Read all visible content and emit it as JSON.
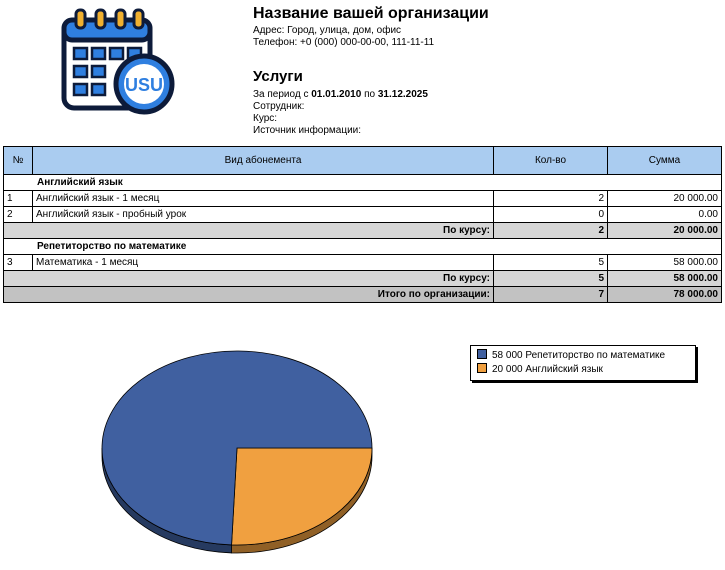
{
  "header": {
    "org_name": "Название вашей организации",
    "address": "Адрес: Город, улица, дом, офис",
    "phone": "Телефон: +0 (000) 000-00-00, 111-11-11",
    "logo_text": "USU"
  },
  "report": {
    "title": "Услуги",
    "period_prefix": "За период с",
    "period_from": "01.01.2010",
    "period_mid": "по",
    "period_to": "31.12.2025",
    "employee_label": "Сотрудник:",
    "course_label": "Курс:",
    "source_label": "Источник информации:"
  },
  "table": {
    "columns": [
      "№",
      "Вид абонемента",
      "Кол-во",
      "Сумма"
    ],
    "groups": [
      {
        "name": "Английский язык",
        "rows": [
          {
            "num": "1",
            "name": "Английский язык - 1 месяц",
            "qty": "2",
            "sum": "20 000.00"
          },
          {
            "num": "2",
            "name": "Английский язык - пробный урок",
            "qty": "0",
            "sum": "0.00"
          }
        ],
        "subtotal_label": "По курсу:",
        "subtotal_qty": "2",
        "subtotal_sum": "20 000.00"
      },
      {
        "name": "Репетиторство по математике",
        "rows": [
          {
            "num": "3",
            "name": "Математика - 1 месяц",
            "qty": "5",
            "sum": "58 000.00"
          }
        ],
        "subtotal_label": "По курсу:",
        "subtotal_qty": "5",
        "subtotal_sum": "58 000.00"
      }
    ],
    "total_label": "Итого по организации:",
    "total_qty": "7",
    "total_sum": "78 000.00"
  },
  "chart_data": {
    "type": "pie",
    "slices": [
      {
        "label": "58 000 Репетиторство по математике",
        "value": 58000,
        "color": "#4060a0"
      },
      {
        "label": "20 000 Английский язык",
        "value": 20000,
        "color": "#f0a040"
      }
    ],
    "legend_position": "top-right"
  }
}
